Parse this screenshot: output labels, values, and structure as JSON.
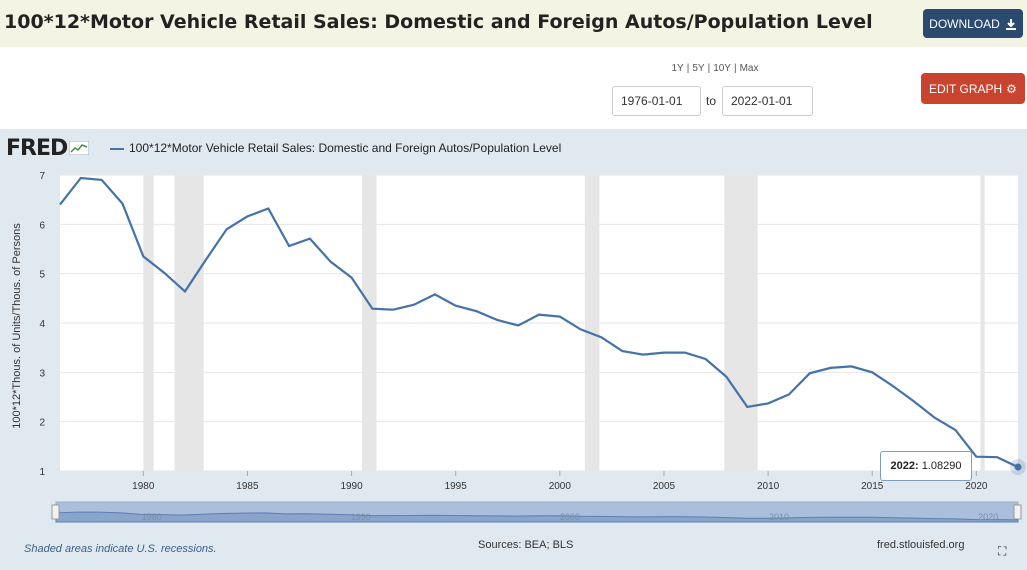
{
  "header": {
    "title": "100*12*Motor Vehicle Retail Sales: Domestic and Foreign Autos/Population Level",
    "download_label": "DOWNLOAD"
  },
  "controls": {
    "ranges": [
      "1Y",
      "5Y",
      "10Y",
      "Max"
    ],
    "start_date": "1976-01-01",
    "to_label": "to",
    "end_date": "2022-01-01",
    "edit_label": "EDIT GRAPH"
  },
  "logo": "FRED",
  "footer": {
    "recession_note": "Shaded areas indicate U.S. recessions.",
    "sources": "Sources: BEA; BLS",
    "url": "fred.stlouisfed.org"
  },
  "tooltip": {
    "year": "2022:",
    "value": "1.08290"
  },
  "colors": {
    "series": "#4572a7",
    "recession": "#e6e6e6",
    "accent_download": "#2b4a70",
    "accent_edit": "#c9442f"
  },
  "chart_data": {
    "type": "line",
    "title": "",
    "ylabel": "100*12*Thous. of Units/Thous. of Persons",
    "xlabel": "",
    "ylim": [
      1,
      7
    ],
    "xlim": [
      1976,
      2022
    ],
    "x_ticks": [
      "1980",
      "1985",
      "1990",
      "1995",
      "2000",
      "2005",
      "2010",
      "2015",
      "2020"
    ],
    "y_ticks": [
      "1",
      "2",
      "3",
      "4",
      "5",
      "6",
      "7"
    ],
    "navigator_ticks": [
      "1980",
      "1990",
      "2000",
      "2010",
      "2020"
    ],
    "grid": true,
    "legend_placement": "top-left",
    "series": [
      {
        "name": "100*12*Motor Vehicle Retail Sales: Domestic and Foreign Autos/Population Level",
        "x": [
          1976,
          1977,
          1978,
          1979,
          1980,
          1981,
          1982,
          1983,
          1984,
          1985,
          1986,
          1987,
          1988,
          1989,
          1990,
          1991,
          1992,
          1993,
          1994,
          1995,
          1996,
          1997,
          1998,
          1999,
          2000,
          2001,
          2002,
          2003,
          2004,
          2005,
          2006,
          2007,
          2008,
          2009,
          2010,
          2011,
          2012,
          2013,
          2014,
          2015,
          2016,
          2017,
          2018,
          2019,
          2020,
          2021,
          2022
        ],
        "values": [
          6.4,
          6.94,
          6.9,
          6.42,
          5.35,
          5.02,
          4.64,
          5.28,
          5.9,
          6.16,
          6.32,
          5.56,
          5.71,
          5.24,
          4.92,
          4.29,
          4.27,
          4.37,
          4.58,
          4.35,
          4.24,
          4.06,
          3.95,
          4.17,
          4.13,
          3.87,
          3.71,
          3.43,
          3.36,
          3.4,
          3.4,
          3.27,
          2.91,
          2.3,
          2.37,
          2.55,
          2.98,
          3.09,
          3.12,
          3.0,
          2.72,
          2.41,
          2.08,
          1.83,
          1.29,
          1.28,
          1.08
        ]
      }
    ],
    "recessions": [
      [
        1980.0,
        1980.5
      ],
      [
        1981.5,
        1982.9
      ],
      [
        1990.5,
        1991.2
      ],
      [
        2001.2,
        2001.9
      ],
      [
        2007.9,
        2009.5
      ],
      [
        2020.2,
        2020.4
      ]
    ]
  }
}
